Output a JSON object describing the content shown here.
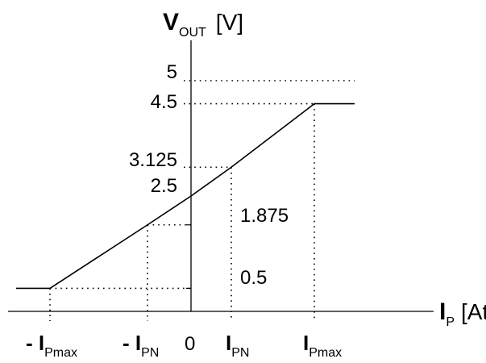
{
  "chart_data": {
    "type": "line",
    "x_axis": {
      "symbol": "I",
      "subscript": "P",
      "unit": "[At]",
      "tick_labels": [
        {
          "prefix": "- I",
          "sub": "Pmax",
          "at": "-Pmax"
        },
        {
          "prefix": "- I",
          "sub": "PN",
          "at": "-PN"
        },
        {
          "prefix": "0",
          "sub": "",
          "at": "0"
        },
        {
          "prefix": "I",
          "sub": "PN",
          "at": "PN"
        },
        {
          "prefix": "I",
          "sub": "Pmax",
          "at": "Pmax"
        }
      ]
    },
    "y_axis": {
      "symbol": "V",
      "subscript": "OUT",
      "unit": "[V]",
      "tick_labels": [
        "5",
        "4.5",
        "3.125",
        "2.5",
        "1.875",
        "0.5"
      ]
    },
    "series": [
      {
        "points": [
          {
            "x": "< -Pmax",
            "y": 0.5
          },
          {
            "x": "-Pmax",
            "y": 0.5
          },
          {
            "x": "-PN",
            "y": 1.875
          },
          {
            "x": "0",
            "y": 2.5
          },
          {
            "x": "PN",
            "y": 3.125
          },
          {
            "x": "Pmax",
            "y": 4.5
          },
          {
            "x": "> Pmax",
            "y": 4.5
          }
        ]
      }
    ],
    "grid": false
  }
}
